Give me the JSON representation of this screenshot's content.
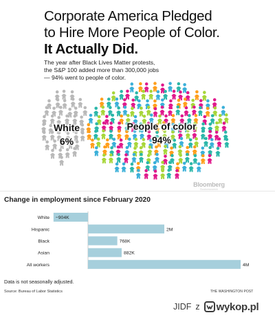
{
  "headline": {
    "line1": "Corporate America Pledged",
    "line2": "to Hire More People of Color.",
    "line3": "It Actually Did."
  },
  "intro": {
    "line1": "The year after Black Lives Matter protests,",
    "line2": "the S&P 100 added more than 300,000 jobs",
    "line3": "— 94% went to people of color."
  },
  "pictogram": {
    "white_label": "White",
    "white_pct": "6%",
    "poc_label": "People of color",
    "poc_pct": "94%",
    "white_share": 6,
    "poc_share": 94,
    "white_color": "#b9b9b9",
    "poc_colors": [
      "#2bb7a9",
      "#a7d63a",
      "#e0198c",
      "#3bb0d9",
      "#ff9f1c"
    ],
    "brand": "Bloomberg",
    "brand_sub": "Businessweek"
  },
  "chart_data": {
    "type": "bar",
    "orientation": "horizontal",
    "title": "Change in employment since February 2020",
    "categories": [
      "White",
      "Hispanic",
      "Black",
      "Asian",
      "All workers"
    ],
    "values": [
      -904000,
      2000000,
      768000,
      882000,
      4000000
    ],
    "value_labels": [
      "−904K",
      "2M",
      "768K",
      "882K",
      "4M"
    ],
    "bar_color": "#a6cfdc",
    "xlim": [
      -1000000,
      4000000
    ],
    "grid": false
  },
  "footnote": "Data is not seasonally adjusted.",
  "source": "Source: Bureau of Labor Statistics",
  "credit": "THE WASHINGTON POST",
  "watermark": {
    "user": "JIDF",
    "sep": "z",
    "brand": "wykop.pl",
    "logo_color": "#3a3a3a",
    "logo_icon": "wykop-logo"
  }
}
